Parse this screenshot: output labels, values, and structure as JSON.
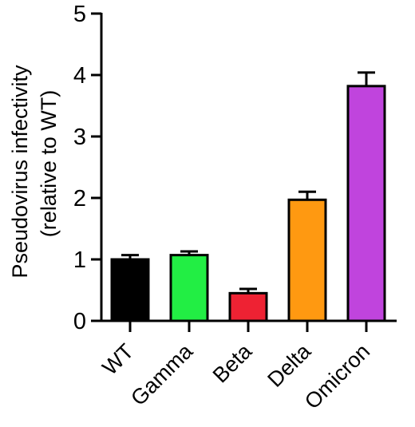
{
  "chart_data": {
    "type": "bar",
    "title": "",
    "xlabel": "",
    "ylabel_lines": [
      "Pseudovirus infectivity",
      "(relative to  WT)"
    ],
    "ylim": [
      0,
      5
    ],
    "yticks": [
      "0",
      "1",
      "2",
      "3",
      "4",
      "5"
    ],
    "categories": [
      "WT",
      "Gamma",
      "Beta",
      "Delta",
      "Omicron"
    ],
    "values": [
      1.0,
      1.07,
      0.45,
      1.97,
      3.82
    ],
    "errors": [
      0.07,
      0.06,
      0.07,
      0.13,
      0.22
    ],
    "colors": [
      "#000000",
      "#22ee44",
      "#ee2233",
      "#ff9911",
      "#c044dd"
    ],
    "grid": false,
    "legend": "none"
  }
}
